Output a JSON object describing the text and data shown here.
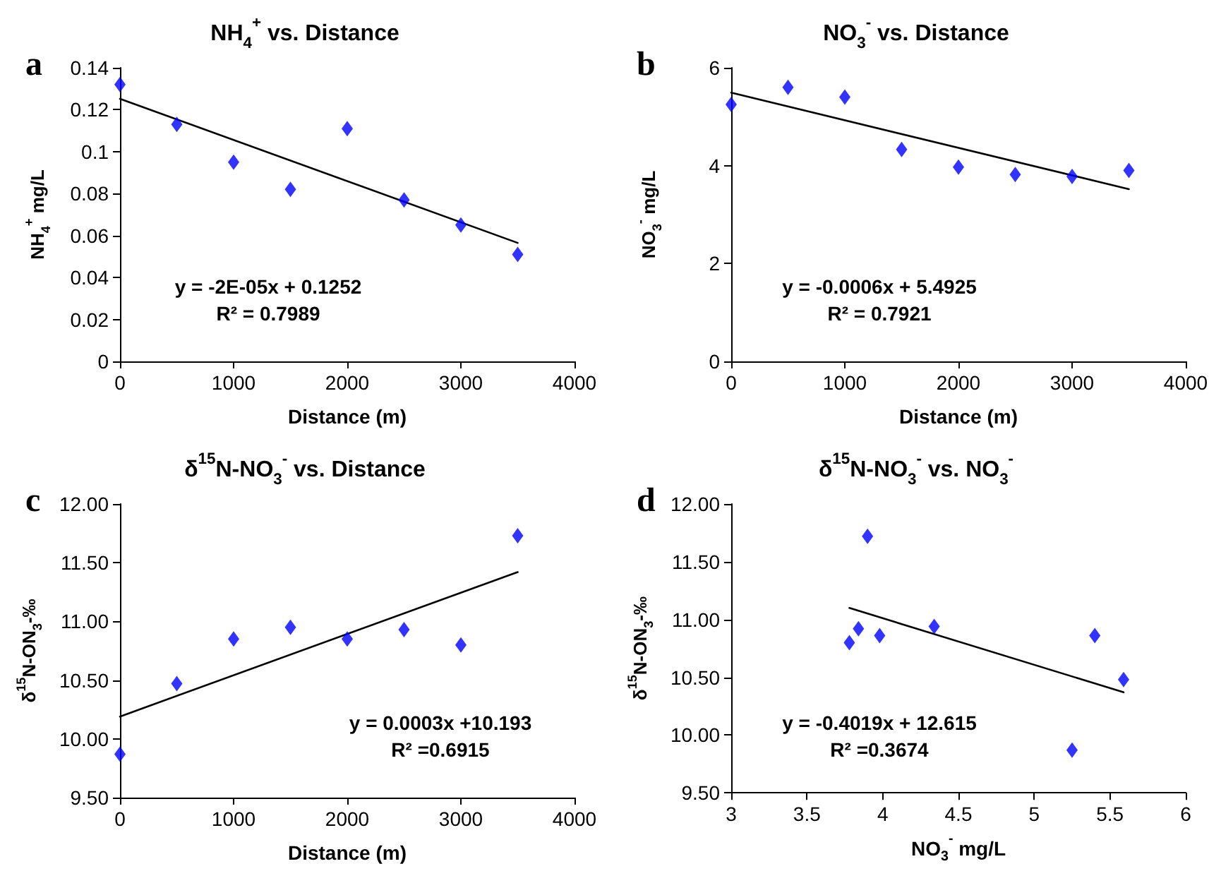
{
  "chart_data": [
    {
      "type": "scatter",
      "title": "NH$_{4}$$^{+}$ vs. Distance",
      "xlabel": "Distance (m)",
      "ylabel": "NH$_{4}$$^{+}$ mg/L",
      "annotations": [
        "a",
        "y = -2E-05x + 0.1252",
        "R² = 0.7989"
      ],
      "marker": "diamond",
      "xlim": [
        0,
        4000
      ],
      "xticks": [
        0,
        1000,
        2000,
        3000,
        4000
      ],
      "ylim": [
        0,
        0.14
      ],
      "yticks": [
        0,
        0.02,
        0.04,
        0.06,
        0.08,
        0.1,
        0.12,
        0.14
      ],
      "x": [
        0,
        500,
        1000,
        1500,
        2000,
        2500,
        3000,
        3500
      ],
      "series": [
        {
          "color": "#0000ff",
          "values": [
            0.132,
            0.113,
            0.095,
            0.082,
            0.111,
            0.077,
            0.065,
            0.051
          ]
        },
        {
          "type": "line",
          "color": "#000000",
          "marker": "none",
          "x": [
            0,
            3500
          ],
          "values": [
            0.1252,
            0.0565
          ]
        }
      ]
    },
    {
      "type": "scatter",
      "title": "NO$_{3}$$^{-}$ vs. Distance",
      "xlabel": "Distance (m)",
      "ylabel": "NO$_{3}$$^{-}$ mg/L",
      "annotations": [
        "b",
        "y = -0.0006x + 5.4925",
        "R² = 0.7921"
      ],
      "marker": "diamond",
      "xlim": [
        0,
        4000
      ],
      "xticks": [
        0,
        1000,
        2000,
        3000,
        4000
      ],
      "ylim": [
        0,
        6
      ],
      "yticks": [
        0,
        2,
        4,
        6
      ],
      "x": [
        0,
        500,
        1000,
        1500,
        2000,
        2500,
        3000,
        3500
      ],
      "series": [
        {
          "color": "#0000ff",
          "values": [
            5.25,
            5.6,
            5.4,
            4.33,
            3.97,
            3.82,
            3.78,
            3.9
          ]
        },
        {
          "type": "line",
          "color": "#000000",
          "marker": "none",
          "x": [
            0,
            3500
          ],
          "values": [
            5.49,
            3.52
          ]
        }
      ]
    },
    {
      "type": "scatter",
      "title": "δ$^{15}$N-NO$_{3}$$^{-}$ vs. Distance",
      "xlabel": "Distance (m)",
      "ylabel": "δ$^{15}$N-ON$_{3}$-‰",
      "annotations": [
        "c",
        "y = 0.0003x +10.193",
        "R² =0.6915"
      ],
      "marker": "diamond",
      "xlim": [
        0,
        4000
      ],
      "xticks": [
        0,
        1000,
        2000,
        3000,
        4000
      ],
      "ylim": [
        9.5,
        12
      ],
      "yticks": [
        {
          "value": 9.5,
          "label": "9.50"
        },
        {
          "value": 10,
          "label": "10.00"
        },
        {
          "value": 10.5,
          "label": "10.50"
        },
        {
          "value": 11,
          "label": "11.00"
        },
        {
          "value": 11.5,
          "label": "11.50"
        },
        {
          "value": 12,
          "label": "12.00"
        }
      ],
      "x": [
        0,
        500,
        1000,
        1500,
        2000,
        2500,
        3000,
        3500
      ],
      "series": [
        {
          "color": "#0000ff",
          "values": [
            9.87,
            10.47,
            10.85,
            10.95,
            10.85,
            10.93,
            10.8,
            11.73
          ]
        },
        {
          "type": "line",
          "color": "#000000",
          "marker": "none",
          "x": [
            0,
            3500
          ],
          "values": [
            10.19,
            11.42
          ]
        }
      ]
    },
    {
      "type": "scatter",
      "title": "δ$^{15}$N-NO$_{3}$$^{-}$ vs. NO$_{3}$$^{-}$",
      "xlabel": "NO$_{3}$$^{-}$ mg/L",
      "ylabel": "δ$^{15}$N-ON$_{3}$-‰",
      "annotations": [
        "d",
        "y = -0.4019x + 12.615",
        "R² =0.3674"
      ],
      "marker": "diamond",
      "xlim": [
        3,
        6
      ],
      "xticks": [
        3,
        3.5,
        4,
        4.5,
        5,
        5.5,
        6
      ],
      "ylim": [
        9.5,
        12
      ],
      "yticks": [
        {
          "value": 9.5,
          "label": "9.50"
        },
        {
          "value": 10,
          "label": "10.00"
        },
        {
          "value": 10.5,
          "label": "10.50"
        },
        {
          "value": 11,
          "label": "11.00"
        },
        {
          "value": 11.5,
          "label": "11.50"
        },
        {
          "value": 12,
          "label": "12.00"
        }
      ],
      "x": [
        3.78,
        3.84,
        3.9,
        3.98,
        4.34,
        5.25,
        5.4,
        5.59
      ],
      "series": [
        {
          "color": "#0000ff",
          "values": [
            10.8,
            10.92,
            11.72,
            10.86,
            10.94,
            9.87,
            10.86,
            10.48
          ]
        },
        {
          "type": "line",
          "color": "#000000",
          "marker": "none",
          "x": [
            3.78,
            5.59
          ],
          "values": [
            11.1,
            10.37
          ]
        }
      ]
    }
  ]
}
